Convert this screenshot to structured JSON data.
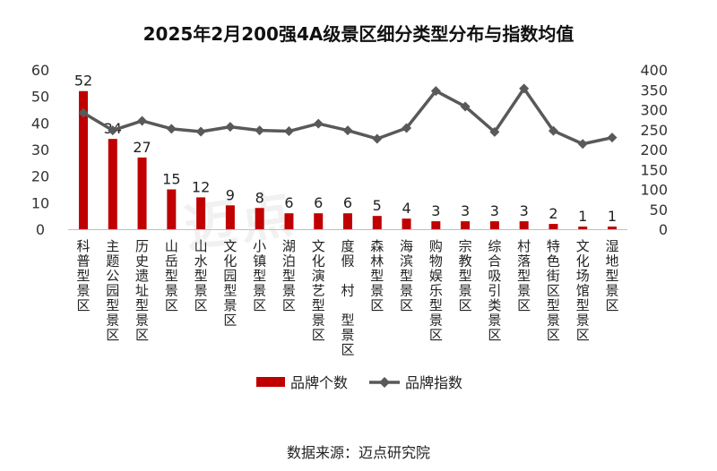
{
  "title": "2025年2月200强4A级景区细分类型分布与指数均值",
  "source": "数据来源：迈点研究院",
  "watermark": "迈点",
  "chart_data": {
    "type": "bar",
    "categories": [
      "科普型景区",
      "主题公园型景区",
      "历史遗址型景区",
      "山岳型景区",
      "山水型景区",
      "文化园型景区",
      "小镇型景区",
      "湖泊型景区",
      "文化演艺型景区",
      "度假村型景区",
      "森林型景区",
      "海滨型景区",
      "购物娱乐型景区",
      "宗教型景区",
      "综合吸引类景区",
      "村落型景区",
      "特色街区型景区",
      "文化场馆型景区",
      "湿地型景区"
    ],
    "category_display": [
      "科普型景区",
      "主题公园型景区",
      "历史遗址型景区",
      "山岳型景区",
      "山水型景区",
      "文化园型景区",
      "小镇型景区",
      "湖泊型景区",
      "文化演艺型景区",
      "度假 村 型景区",
      "森林型景区",
      "海滨型景区",
      "购物娱乐型景区",
      "宗教型景区",
      "综合吸引类景区",
      "村落型景区",
      "特色街区型景区",
      "文化场馆型景区",
      "湿地型景区"
    ],
    "series": [
      {
        "name": "品牌个数",
        "type": "bar",
        "axis": "left",
        "color": "#C00000",
        "values": [
          52,
          34,
          27,
          15,
          12,
          9,
          8,
          6,
          6,
          6,
          5,
          4,
          3,
          3,
          3,
          3,
          2,
          1,
          1
        ]
      },
      {
        "name": "品牌指数",
        "type": "line",
        "axis": "right",
        "color": "#595959",
        "values": [
          292,
          248,
          272,
          252,
          245,
          257,
          248,
          246,
          265,
          248,
          227,
          254,
          347,
          308,
          244,
          353,
          247,
          214,
          230
        ]
      }
    ],
    "y_left": {
      "range": [
        0,
        60
      ],
      "ticks": [
        0,
        10,
        20,
        30,
        40,
        50,
        60
      ]
    },
    "y_right": {
      "range": [
        0,
        400
      ],
      "ticks": [
        0,
        50,
        100,
        150,
        200,
        250,
        300,
        350,
        400
      ]
    },
    "grid": false,
    "legend_position": "bottom"
  }
}
